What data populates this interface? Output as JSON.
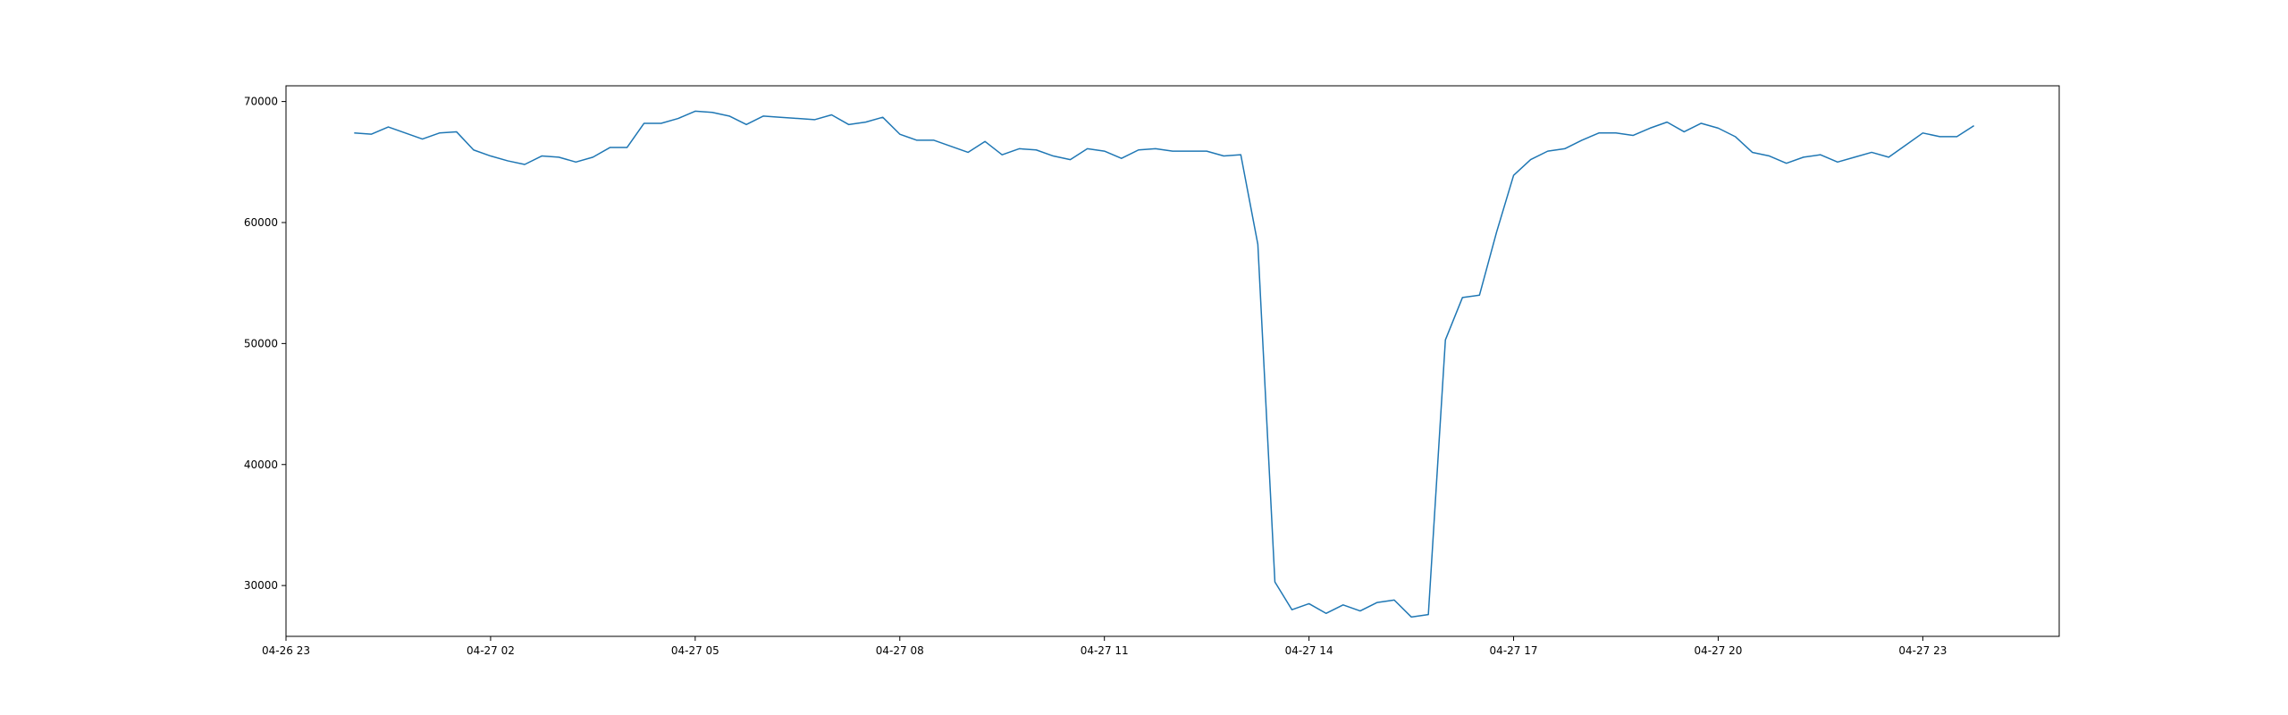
{
  "chart_data": {
    "type": "line",
    "title": "",
    "xlabel": "",
    "ylabel": "",
    "xlim": [
      "2024-04-26 23:00",
      "2024-04-28 01:00"
    ],
    "ylim": [
      25800,
      71300
    ],
    "x_ticks": [
      {
        "value": "2024-04-26 23:00",
        "label": "04-26 23"
      },
      {
        "value": "2024-04-27 02:00",
        "label": "04-27 02"
      },
      {
        "value": "2024-04-27 05:00",
        "label": "04-27 05"
      },
      {
        "value": "2024-04-27 08:00",
        "label": "04-27 08"
      },
      {
        "value": "2024-04-27 11:00",
        "label": "04-27 11"
      },
      {
        "value": "2024-04-27 14:00",
        "label": "04-27 14"
      },
      {
        "value": "2024-04-27 17:00",
        "label": "04-27 17"
      },
      {
        "value": "2024-04-27 20:00",
        "label": "04-27 20"
      },
      {
        "value": "2024-04-27 23:00",
        "label": "04-27 23"
      }
    ],
    "y_ticks": [
      {
        "value": 30000,
        "label": "30000"
      },
      {
        "value": 40000,
        "label": "40000"
      },
      {
        "value": 50000,
        "label": "50000"
      },
      {
        "value": 60000,
        "label": "60000"
      },
      {
        "value": 70000,
        "label": "70000"
      }
    ],
    "grid": false,
    "series": [
      {
        "color": "#1f77b4",
        "x": [
          "2024-04-27 00:00",
          "2024-04-27 00:15",
          "2024-04-27 00:30",
          "2024-04-27 00:45",
          "2024-04-27 01:00",
          "2024-04-27 01:15",
          "2024-04-27 01:30",
          "2024-04-27 01:45",
          "2024-04-27 02:00",
          "2024-04-27 02:15",
          "2024-04-27 02:30",
          "2024-04-27 02:45",
          "2024-04-27 03:00",
          "2024-04-27 03:15",
          "2024-04-27 03:30",
          "2024-04-27 03:45",
          "2024-04-27 04:00",
          "2024-04-27 04:15",
          "2024-04-27 04:30",
          "2024-04-27 04:45",
          "2024-04-27 05:00",
          "2024-04-27 05:15",
          "2024-04-27 05:30",
          "2024-04-27 05:45",
          "2024-04-27 06:00",
          "2024-04-27 06:15",
          "2024-04-27 06:30",
          "2024-04-27 06:45",
          "2024-04-27 07:00",
          "2024-04-27 07:15",
          "2024-04-27 07:30",
          "2024-04-27 07:45",
          "2024-04-27 08:00",
          "2024-04-27 08:15",
          "2024-04-27 08:30",
          "2024-04-27 08:45",
          "2024-04-27 09:00",
          "2024-04-27 09:15",
          "2024-04-27 09:30",
          "2024-04-27 09:45",
          "2024-04-27 10:00",
          "2024-04-27 10:15",
          "2024-04-27 10:30",
          "2024-04-27 10:45",
          "2024-04-27 11:00",
          "2024-04-27 11:15",
          "2024-04-27 11:30",
          "2024-04-27 11:45",
          "2024-04-27 12:00",
          "2024-04-27 12:15",
          "2024-04-27 12:30",
          "2024-04-27 12:45",
          "2024-04-27 13:00",
          "2024-04-27 13:15",
          "2024-04-27 13:30",
          "2024-04-27 13:45",
          "2024-04-27 14:00",
          "2024-04-27 14:15",
          "2024-04-27 14:30",
          "2024-04-27 14:45",
          "2024-04-27 15:00",
          "2024-04-27 15:15",
          "2024-04-27 15:30",
          "2024-04-27 15:45",
          "2024-04-27 16:00",
          "2024-04-27 16:15",
          "2024-04-27 16:30",
          "2024-04-27 16:45",
          "2024-04-27 17:00",
          "2024-04-27 17:15",
          "2024-04-27 17:30",
          "2024-04-27 17:45",
          "2024-04-27 18:00",
          "2024-04-27 18:15",
          "2024-04-27 18:30",
          "2024-04-27 18:45",
          "2024-04-27 19:00",
          "2024-04-27 19:15",
          "2024-04-27 19:30",
          "2024-04-27 19:45",
          "2024-04-27 20:00",
          "2024-04-27 20:15",
          "2024-04-27 20:30",
          "2024-04-27 20:45",
          "2024-04-27 21:00",
          "2024-04-27 21:15",
          "2024-04-27 21:30",
          "2024-04-27 21:45",
          "2024-04-27 22:00",
          "2024-04-27 22:15",
          "2024-04-27 22:30",
          "2024-04-27 22:45",
          "2024-04-27 23:00",
          "2024-04-27 23:15",
          "2024-04-27 23:30",
          "2024-04-27 23:45"
        ],
        "values": [
          67400,
          67300,
          67900,
          67400,
          66900,
          67400,
          67500,
          66000,
          65500,
          65100,
          64800,
          65500,
          65400,
          65000,
          65400,
          66200,
          66200,
          68200,
          68200,
          68600,
          69200,
          69100,
          68800,
          68100,
          68800,
          68700,
          68600,
          68500,
          68900,
          68100,
          68300,
          68700,
          67300,
          66800,
          66800,
          66300,
          65800,
          66700,
          65600,
          66100,
          66000,
          65500,
          65200,
          66100,
          65900,
          65300,
          66000,
          66100,
          65900,
          65900,
          65900,
          65500,
          65600,
          58200,
          30300,
          28000,
          28500,
          27700,
          28400,
          27900,
          28600,
          28800,
          27400,
          27600,
          50300,
          53800,
          54000,
          59200,
          63900,
          65200,
          65900,
          66100,
          66800,
          67400,
          67400,
          67200,
          67800,
          68300,
          67500,
          68200,
          67800,
          67100,
          65800,
          65500,
          64900,
          65400,
          65600,
          65000,
          65400,
          65800,
          65400,
          66400,
          67400,
          67100,
          67100,
          68000
        ]
      }
    ]
  }
}
